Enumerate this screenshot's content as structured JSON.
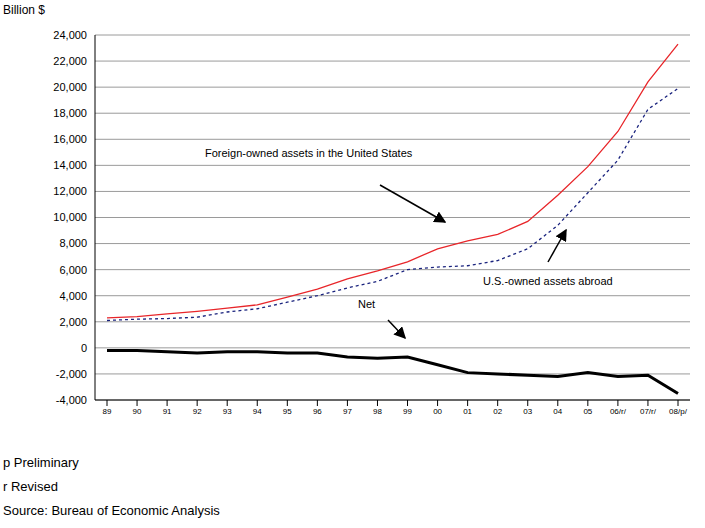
{
  "chart_data": {
    "type": "line",
    "y_label": "Billion $",
    "categories": [
      "89",
      "90",
      "91",
      "92",
      "93",
      "94",
      "95",
      "96",
      "97",
      "98",
      "99",
      "00",
      "01",
      "02",
      "03",
      "04",
      "05",
      "06/r/",
      "07/r/",
      "08/p/"
    ],
    "series": [
      {
        "name": "Foreign-owned assets in the United States",
        "color": "#e8262a",
        "line_style": "solid",
        "values": [
          2300,
          2400,
          2600,
          2800,
          3050,
          3300,
          3900,
          4500,
          5300,
          5900,
          6600,
          7600,
          8200,
          8700,
          9700,
          11700,
          13900,
          16600,
          20400,
          23300
        ]
      },
      {
        "name": "U.S.-owned assets abroad",
        "color": "#1a237e",
        "line_style": "dotted",
        "values": [
          2100,
          2200,
          2250,
          2350,
          2750,
          3000,
          3500,
          4000,
          4600,
          5100,
          6000,
          6200,
          6300,
          6700,
          7600,
          9400,
          11900,
          14400,
          18300,
          19900
        ]
      },
      {
        "name": "Net",
        "color": "#000000",
        "line_style": "solid",
        "values": [
          -200,
          -200,
          -300,
          -400,
          -300,
          -300,
          -400,
          -400,
          -700,
          -800,
          -700,
          -1300,
          -1900,
          -2000,
          -2100,
          -2200,
          -1900,
          -2200,
          -2100,
          -3500
        ]
      }
    ],
    "ylim": [
      -4000,
      24000
    ],
    "yticks": [
      {
        "value": -4000,
        "label": "-4,000"
      },
      {
        "value": -2000,
        "label": "-2,000"
      },
      0,
      {
        "value": 2000,
        "label": "2,000"
      },
      {
        "value": 4000,
        "label": "4,000"
      },
      {
        "value": 6000,
        "label": "6,000"
      },
      {
        "value": 8000,
        "label": "8,000"
      },
      {
        "value": 10000,
        "label": "10,000"
      },
      {
        "value": 12000,
        "label": "12,000"
      },
      {
        "value": 14000,
        "label": "14,000"
      },
      {
        "value": 16000,
        "label": "16,000"
      },
      {
        "value": 18000,
        "label": "18,000"
      },
      {
        "value": 20000,
        "label": "20,000"
      },
      {
        "value": 22000,
        "label": "22,000"
      },
      {
        "value": 24000,
        "label": "24,000"
      }
    ],
    "grid": true,
    "footnotes": [
      "p Preliminary",
      "r Revised",
      "Source: Bureau of Economic Analysis"
    ]
  }
}
